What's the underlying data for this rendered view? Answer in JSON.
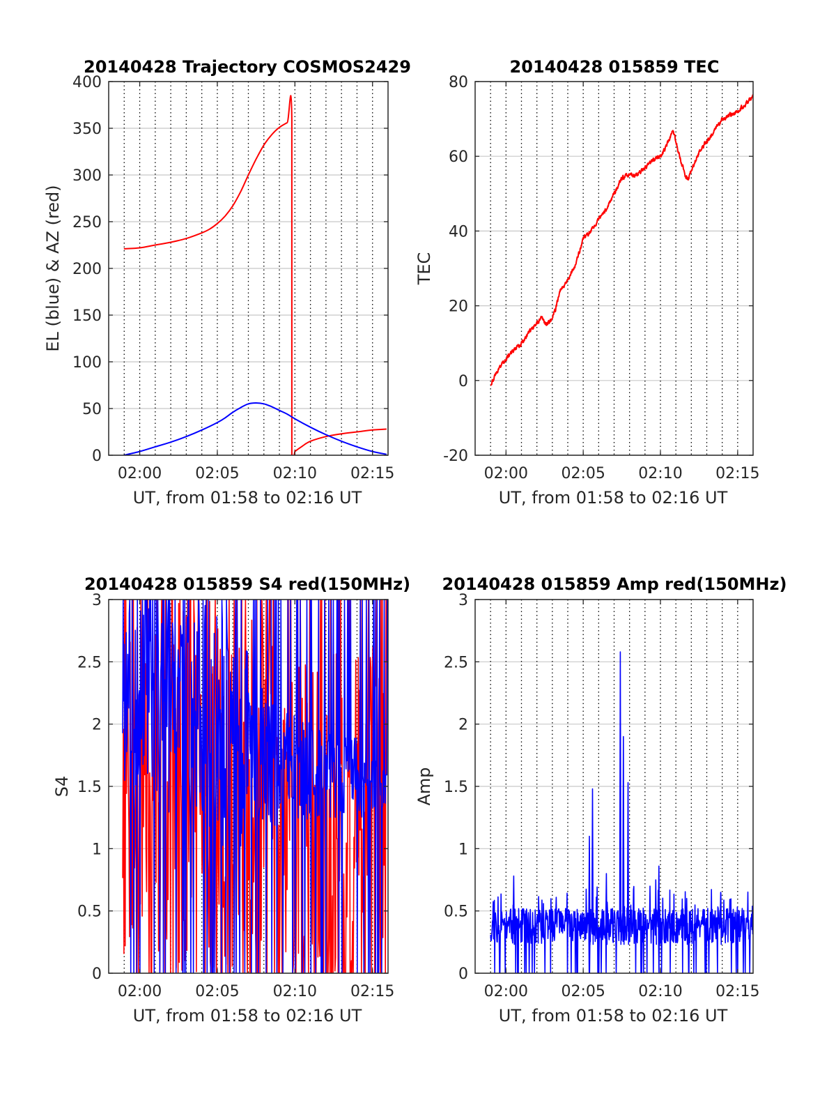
{
  "figure": {
    "background": "#ffffff",
    "colors": {
      "red": "#ff0000",
      "blue": "#0000ff",
      "axis": "#262626",
      "grid": "#c8c8c8"
    }
  },
  "chart_data": [
    {
      "id": "trajectory",
      "type": "line",
      "title": "20140428 Trajectory COSMOS2429",
      "xlabel": "UT, from 01:58 to 02:16 UT",
      "ylabel": "EL (blue) & AZ (red)",
      "x_unit": "minutes after 00:00 UT",
      "xlim": [
        118,
        136
      ],
      "ylim": [
        0,
        400
      ],
      "yticks": [
        0,
        50,
        100,
        150,
        200,
        250,
        300,
        350,
        400
      ],
      "xticks": [
        {
          "v": 120,
          "label": "02:00"
        },
        {
          "v": 125,
          "label": "02:05"
        },
        {
          "v": 130,
          "label": "02:10"
        },
        {
          "v": 135,
          "label": "02:15"
        }
      ],
      "grid": "dotted x every minute, light solid y",
      "series": [
        {
          "color": "#ff0000",
          "kind": "smooth",
          "points": [
            [
              118.98,
              221
            ],
            [
              120,
              222
            ],
            [
              121,
              225
            ],
            [
              122,
              228
            ],
            [
              123,
              232
            ],
            [
              124,
              238
            ],
            [
              124.5,
              242
            ],
            [
              125,
              248
            ],
            [
              125.5,
              256
            ],
            [
              126,
              267
            ],
            [
              126.5,
              282
            ],
            [
              127,
              300
            ],
            [
              127.5,
              317
            ],
            [
              128,
              332
            ],
            [
              128.5,
              343
            ],
            [
              129,
              351
            ],
            [
              129.5,
              356
            ],
            [
              129.8,
              359
            ],
            [
              129.8,
              0
            ],
            [
              130,
              4
            ],
            [
              130.5,
              10
            ],
            [
              131,
              15
            ],
            [
              132,
              20
            ],
            [
              133,
              23
            ],
            [
              134,
              25
            ],
            [
              135,
              27
            ],
            [
              135.9,
              28
            ]
          ]
        },
        {
          "color": "#0000ff",
          "kind": "smooth",
          "points": [
            [
              118.98,
              0
            ],
            [
              120,
              4
            ],
            [
              121,
              9
            ],
            [
              122,
              14
            ],
            [
              123,
              20
            ],
            [
              124,
              27
            ],
            [
              125,
              35
            ],
            [
              125.5,
              40
            ],
            [
              126,
              46
            ],
            [
              126.5,
              51
            ],
            [
              127,
              55
            ],
            [
              127.5,
              56
            ],
            [
              128,
              55
            ],
            [
              128.5,
              52
            ],
            [
              129,
              48
            ],
            [
              129.5,
              44
            ],
            [
              130,
              39
            ],
            [
              131,
              30
            ],
            [
              132,
              22
            ],
            [
              133,
              15
            ],
            [
              134,
              9
            ],
            [
              135,
              4
            ],
            [
              135.9,
              1
            ]
          ]
        }
      ]
    },
    {
      "id": "tec",
      "type": "line",
      "title": "20140428 015859 TEC",
      "xlabel": "UT, from 01:58 to 02:16 UT",
      "ylabel": "TEC",
      "x_unit": "minutes after 00:00 UT",
      "xlim": [
        118,
        136
      ],
      "ylim": [
        -20,
        80
      ],
      "yticks": [
        -20,
        0,
        20,
        40,
        60,
        80
      ],
      "xticks": [
        {
          "v": 120,
          "label": "02:00"
        },
        {
          "v": 125,
          "label": "02:05"
        },
        {
          "v": 130,
          "label": "02:10"
        },
        {
          "v": 135,
          "label": "02:15"
        }
      ],
      "grid": "dotted x every minute, light solid y",
      "series": [
        {
          "color": "#ff0000",
          "kind": "noisy",
          "noise": 0.6,
          "points": [
            [
              119,
              -1
            ],
            [
              119.5,
              3
            ],
            [
              120,
              6
            ],
            [
              120.5,
              8
            ],
            [
              121,
              10
            ],
            [
              121.5,
              13
            ],
            [
              122,
              15
            ],
            [
              122.3,
              17
            ],
            [
              122.6,
              15
            ],
            [
              122.9,
              16
            ],
            [
              123.2,
              19
            ],
            [
              123.5,
              24
            ],
            [
              124,
              27
            ],
            [
              124.5,
              31
            ],
            [
              125,
              38
            ],
            [
              125.5,
              40
            ],
            [
              126,
              43
            ],
            [
              126.5,
              46
            ],
            [
              127,
              50
            ],
            [
              127.5,
              54
            ],
            [
              128,
              55
            ],
            [
              128.5,
              55
            ],
            [
              129,
              57
            ],
            [
              129.5,
              59
            ],
            [
              130,
              60
            ],
            [
              130.3,
              62
            ],
            [
              130.6,
              65
            ],
            [
              130.8,
              67
            ],
            [
              131,
              64
            ],
            [
              131.3,
              59
            ],
            [
              131.6,
              55
            ],
            [
              131.8,
              54
            ],
            [
              132,
              56
            ],
            [
              132.5,
              61
            ],
            [
              133,
              64
            ],
            [
              133.5,
              67
            ],
            [
              134,
              70
            ],
            [
              134.5,
              71
            ],
            [
              135,
              72
            ],
            [
              135.5,
              74
            ],
            [
              136,
              76
            ]
          ]
        }
      ]
    },
    {
      "id": "s4",
      "type": "line",
      "title": "20140428 015859 S4 red(150MHz)",
      "xlabel": "UT, from 01:58 to 02:16 UT",
      "ylabel": "S4",
      "x_unit": "minutes after 00:00 UT",
      "xlim": [
        118,
        136
      ],
      "ylim": [
        0,
        3
      ],
      "yticks": [
        0,
        0.5,
        1,
        1.5,
        2,
        2.5,
        3
      ],
      "xticks": [
        {
          "v": 120,
          "label": "02:00"
        },
        {
          "v": 125,
          "label": "02:05"
        },
        {
          "v": 130,
          "label": "02:10"
        },
        {
          "v": 135,
          "label": "02:15"
        }
      ],
      "grid": "dotted x every minute, light solid y",
      "series": [
        {
          "color": "#ff0000",
          "kind": "spiky",
          "xrange": [
            118.9,
            135.95
          ],
          "samples": 420,
          "seed": 7,
          "levels": [
            [
              118.9,
              1.6,
              1.6
            ],
            [
              127,
              1.5,
              1.5
            ],
            [
              130,
              1.2,
              1.3
            ],
            [
              132,
              1.0,
              1.5
            ],
            [
              135.95,
              1.5,
              1.5
            ]
          ]
        },
        {
          "color": "#0000ff",
          "kind": "spiky",
          "xrange": [
            118.9,
            135.95
          ],
          "samples": 520,
          "seed": 3,
          "levels": [
            [
              118.9,
              2.4,
              0.9
            ],
            [
              124,
              2.1,
              1.1
            ],
            [
              127,
              1.8,
              0.8
            ],
            [
              129,
              1.7,
              0.5
            ],
            [
              132,
              1.6,
              0.35
            ],
            [
              135.95,
              1.55,
              0.3
            ]
          ]
        }
      ]
    },
    {
      "id": "amp",
      "type": "line",
      "title": "20140428 015859 Amp red(150MHz)",
      "xlabel": "UT, from 01:58 to 02:16 UT",
      "ylabel": "Amp",
      "x_unit": "minutes after 00:00 UT",
      "xlim": [
        118,
        136
      ],
      "ylim": [
        0,
        3
      ],
      "yticks": [
        0,
        0.5,
        1,
        1.5,
        2,
        2.5,
        3
      ],
      "xticks": [
        {
          "v": 120,
          "label": "02:00"
        },
        {
          "v": 125,
          "label": "02:05"
        },
        {
          "v": 130,
          "label": "02:10"
        },
        {
          "v": 135,
          "label": "02:15"
        }
      ],
      "grid": "dotted x every minute, light solid y",
      "series": [
        {
          "color": "#0000ff",
          "kind": "noiseband",
          "xrange": [
            119,
            136
          ],
          "samples": 700,
          "seed": 11,
          "base": 0.38,
          "spread": 0.14,
          "peaks": [
            [
              120.5,
              0.78
            ],
            [
              125.4,
              1.1
            ],
            [
              125.6,
              1.48
            ],
            [
              126.5,
              0.8
            ],
            [
              127.4,
              2.58
            ],
            [
              127.6,
              1.9
            ],
            [
              127.9,
              1.53
            ],
            [
              129.7,
              0.75
            ],
            [
              129.9,
              0.86
            ],
            [
              131.7,
              0.6
            ],
            [
              133.9,
              0.65
            ]
          ]
        }
      ]
    }
  ]
}
